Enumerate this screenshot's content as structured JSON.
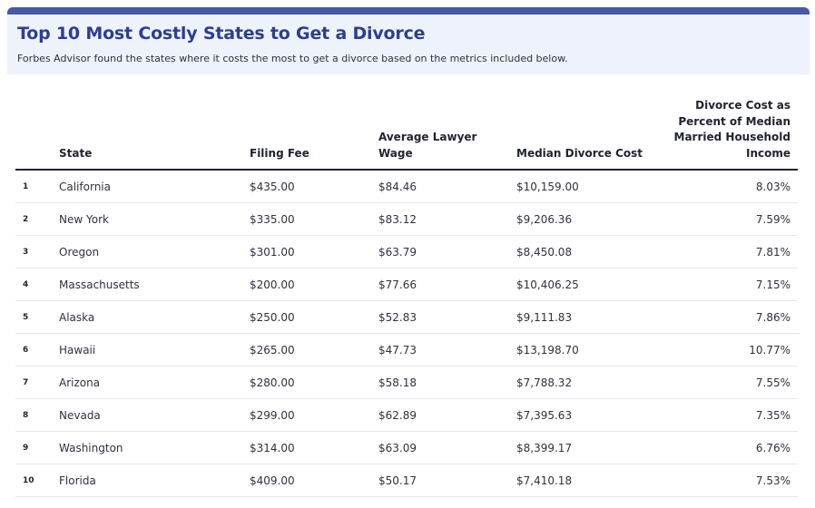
{
  "title": "Top 10 Most Costly States to Get a Divorce",
  "subtitle": "Forbes Advisor found the states where it costs the most to get a divorce based on the metrics included below.",
  "colors": {
    "accent_bar": "#4a59a5",
    "title": "#2c3f8f",
    "header_bg": "#eef2fb"
  },
  "table": {
    "columns": [
      "",
      "State",
      "Filing Fee",
      "Average Lawyer Wage",
      "Median Divorce Cost",
      "Divorce Cost as Percent of Median Married Household Income"
    ],
    "rows": [
      [
        "1",
        "California",
        "$435.00",
        "$84.46",
        "$10,159.00",
        "8.03%"
      ],
      [
        "2",
        "New York",
        "$335.00",
        "$83.12",
        "$9,206.36",
        "7.59%"
      ],
      [
        "3",
        "Oregon",
        "$301.00",
        "$63.79",
        "$8,450.08",
        "7.81%"
      ],
      [
        "4",
        "Massachusetts",
        "$200.00",
        "$77.66",
        "$10,406.25",
        "7.15%"
      ],
      [
        "5",
        "Alaska",
        "$250.00",
        "$52.83",
        "$9,111.83",
        "7.86%"
      ],
      [
        "6",
        "Hawaii",
        "$265.00",
        "$47.73",
        "$13,198.70",
        "10.77%"
      ],
      [
        "7",
        "Arizona",
        "$280.00",
        "$58.18",
        "$7,788.32",
        "7.55%"
      ],
      [
        "8",
        "Nevada",
        "$299.00",
        "$62.89",
        "$7,395.63",
        "7.35%"
      ],
      [
        "9",
        "Washington",
        "$314.00",
        "$63.09",
        "$8,399.17",
        "6.76%"
      ],
      [
        "10",
        "Florida",
        "$409.00",
        "$50.17",
        "$7,410.18",
        "7.53%"
      ]
    ]
  },
  "chart_data": {
    "type": "table",
    "title": "Top 10 Most Costly States to Get a Divorce",
    "subtitle": "Forbes Advisor found the states where it costs the most to get a divorce based on the metrics included below.",
    "columns": [
      "",
      "State",
      "Filing Fee",
      "Average Lawyer Wage",
      "Median Divorce Cost",
      "Divorce Cost as Percent of Median Married Household Income"
    ],
    "rows": [
      [
        "1",
        "California",
        "$435.00",
        "$84.46",
        "$10,159.00",
        "8.03%"
      ],
      [
        "2",
        "New York",
        "$335.00",
        "$83.12",
        "$9,206.36",
        "7.59%"
      ],
      [
        "3",
        "Oregon",
        "$301.00",
        "$63.79",
        "$8,450.08",
        "7.81%"
      ],
      [
        "4",
        "Massachusetts",
        "$200.00",
        "$77.66",
        "$10,406.25",
        "7.15%"
      ],
      [
        "5",
        "Alaska",
        "$250.00",
        "$52.83",
        "$9,111.83",
        "7.86%"
      ],
      [
        "6",
        "Hawaii",
        "$265.00",
        "$47.73",
        "$13,198.70",
        "10.77%"
      ],
      [
        "7",
        "Arizona",
        "$280.00",
        "$58.18",
        "$7,788.32",
        "7.55%"
      ],
      [
        "8",
        "Nevada",
        "$299.00",
        "$62.89",
        "$7,395.63",
        "7.35%"
      ],
      [
        "9",
        "Washington",
        "$314.00",
        "$63.09",
        "$8,399.17",
        "6.76%"
      ],
      [
        "10",
        "Florida",
        "$409.00",
        "$50.17",
        "$7,410.18",
        "7.53%"
      ]
    ]
  }
}
